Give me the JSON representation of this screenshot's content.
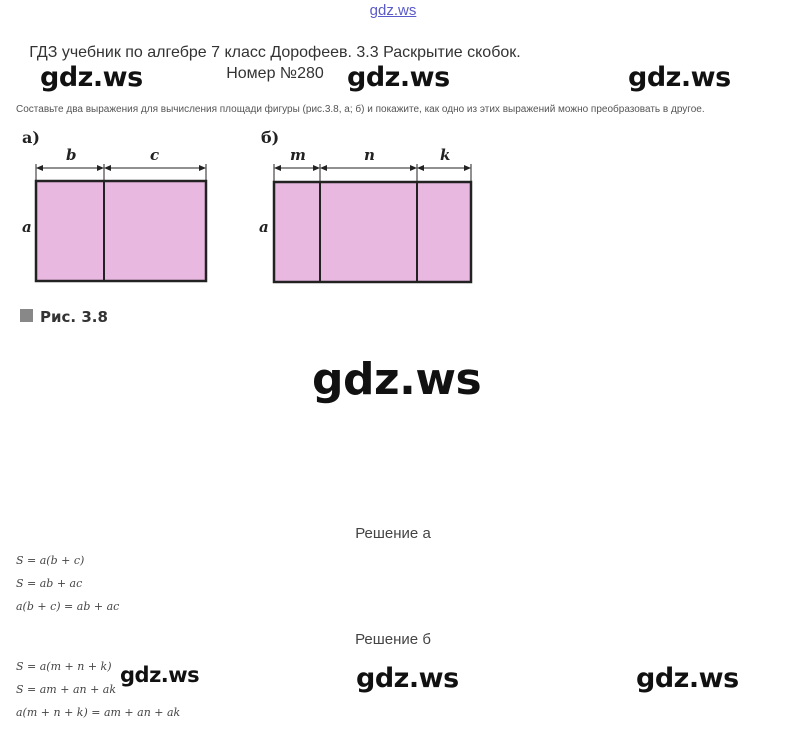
{
  "site_link": "gdz.ws",
  "title": "ГДЗ учебник по алгебре 7 класс Дорофеев. 3.3 Раскрытие скобок. Номер №280",
  "watermark": "gdz.ws",
  "task_text": "Составьте два выражения для вычисления площади фигуры (рис.3.8, а; б) и покажите, как одно из этих выражений можно преобразовать в другое.",
  "figure": {
    "label_a": "а)",
    "label_b": "б)",
    "a_top_labels": [
      "b",
      "c"
    ],
    "b_top_labels": [
      "m",
      "n",
      "k"
    ],
    "side_label": "a",
    "caption": "Рис.  3.8",
    "fill_color": "#e8b8e0"
  },
  "solution_a": {
    "heading": "Решение а",
    "lines": [
      "S = a(b + c)",
      "S = ab + ac",
      "a(b + c) = ab + ac"
    ]
  },
  "solution_b": {
    "heading": "Решение б",
    "lines": [
      "S = a(m + n + k)",
      "S = am + an + ak",
      "a(m + n + k) = am + an + ak"
    ]
  }
}
